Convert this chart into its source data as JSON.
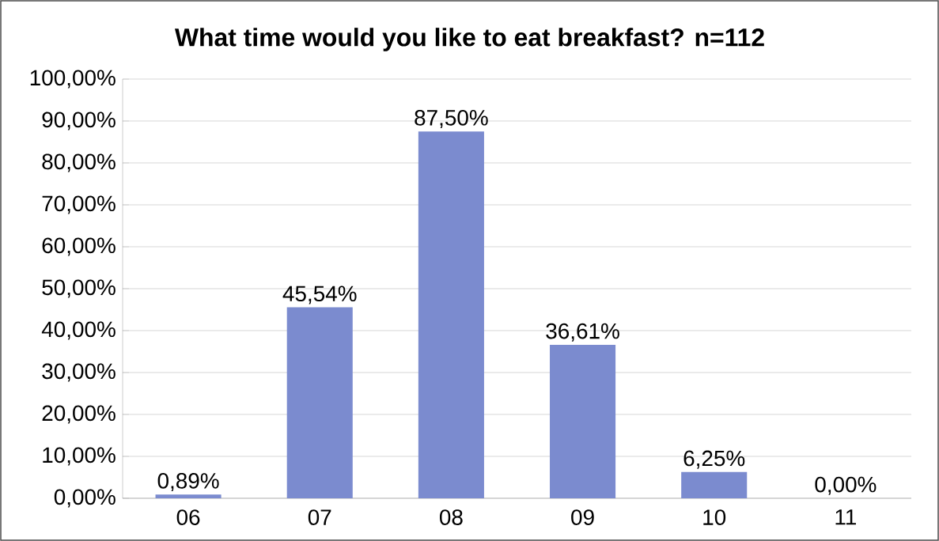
{
  "chart_data": {
    "type": "bar",
    "title": "What time would you like to eat breakfast?  n=112",
    "categories": [
      "06",
      "07",
      "08",
      "09",
      "10",
      "11"
    ],
    "values": [
      0.89,
      45.54,
      87.5,
      36.61,
      6.25,
      0
    ],
    "value_labels": [
      "0,89%",
      "45,54%",
      "87,50%",
      "36,61%",
      "6,25%",
      "0,00%"
    ],
    "color": "#7b8bcf",
    "ylim": [
      0,
      100
    ],
    "yticks": [
      {
        "value": 0,
        "label": "0,00%"
      },
      {
        "value": 10,
        "label": "10,00%"
      },
      {
        "value": 20,
        "label": "20,00%"
      },
      {
        "value": 30,
        "label": "30,00%"
      },
      {
        "value": 40,
        "label": "40,00%"
      },
      {
        "value": 50,
        "label": "50,00%"
      },
      {
        "value": 60,
        "label": "60,00%"
      },
      {
        "value": 70,
        "label": "70,00%"
      },
      {
        "value": 80,
        "label": "80,00%"
      },
      {
        "value": 90,
        "label": "90,00%"
      },
      {
        "value": 100,
        "label": "100,00%"
      }
    ],
    "grid": "y"
  }
}
